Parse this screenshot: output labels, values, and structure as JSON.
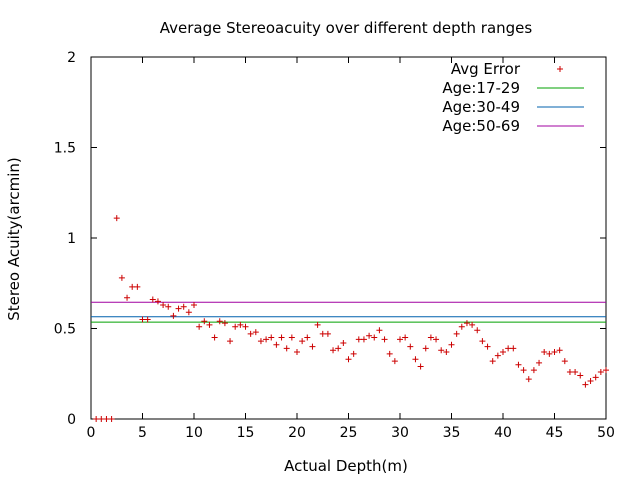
{
  "chart_data": {
    "type": "scatter",
    "title": "Average Stereoacuity over different depth ranges",
    "xlabel": "Actual Depth(m)",
    "ylabel": "Stereo Acuity(arcmin)",
    "xlim": [
      0,
      50
    ],
    "ylim": [
      0,
      2
    ],
    "xticks": [
      "0",
      "5",
      "10",
      "15",
      "20",
      "25",
      "30",
      "35",
      "40",
      "45",
      "50"
    ],
    "yticks": [
      "0",
      "0.5",
      "1",
      "1.5",
      "2"
    ],
    "grid": false,
    "legend_position": "top-right",
    "scatter": {
      "name": "Avg Error",
      "color": "#cc0000",
      "marker": "plus",
      "x": [
        0.5,
        1.0,
        1.5,
        2.0,
        2.5,
        3.0,
        3.5,
        4.0,
        4.5,
        5.0,
        5.5,
        6.0,
        6.5,
        7.0,
        7.5,
        8.0,
        8.5,
        9.0,
        9.5,
        10.0,
        10.5,
        11.0,
        11.5,
        12.0,
        12.5,
        13.0,
        13.5,
        14.0,
        14.5,
        15.0,
        15.5,
        16.0,
        16.5,
        17.0,
        17.5,
        18.0,
        18.5,
        19.0,
        19.5,
        20.0,
        20.5,
        21.0,
        21.5,
        22.0,
        22.5,
        23.0,
        23.5,
        24.0,
        24.5,
        25.0,
        25.5,
        26.0,
        26.5,
        27.0,
        27.5,
        28.0,
        28.5,
        29.0,
        29.5,
        30.0,
        30.5,
        31.0,
        31.5,
        32.0,
        32.5,
        33.0,
        33.5,
        34.0,
        34.5,
        35.0,
        35.5,
        36.0,
        36.5,
        37.0,
        37.5,
        38.0,
        38.5,
        39.0,
        39.5,
        40.0,
        40.5,
        41.0,
        41.5,
        42.0,
        42.5,
        43.0,
        43.5,
        44.0,
        44.5,
        45.0,
        45.5,
        46.0,
        46.5,
        47.0,
        47.5,
        48.0,
        48.5,
        49.0,
        49.5,
        50.0
      ],
      "y": [
        0.0,
        0.0,
        0.0,
        0.0,
        1.11,
        0.78,
        0.67,
        0.73,
        0.73,
        0.55,
        0.55,
        0.66,
        0.65,
        0.63,
        0.62,
        0.57,
        0.61,
        0.62,
        0.59,
        0.63,
        0.51,
        0.54,
        0.52,
        0.45,
        0.54,
        0.53,
        0.43,
        0.51,
        0.52,
        0.51,
        0.47,
        0.48,
        0.43,
        0.44,
        0.45,
        0.41,
        0.45,
        0.39,
        0.45,
        0.37,
        0.43,
        0.45,
        0.4,
        0.52,
        0.47,
        0.47,
        0.38,
        0.39,
        0.42,
        0.33,
        0.36,
        0.44,
        0.44,
        0.46,
        0.45,
        0.49,
        0.44,
        0.36,
        0.32,
        0.44,
        0.45,
        0.4,
        0.33,
        0.29,
        0.39,
        0.45,
        0.44,
        0.38,
        0.37,
        0.41,
        0.47,
        0.51,
        0.53,
        0.52,
        0.49,
        0.43,
        0.4,
        0.32,
        0.35,
        0.37,
        0.39,
        0.39,
        0.3,
        0.27,
        0.22,
        0.27,
        0.31,
        0.37,
        0.36,
        0.37,
        0.38,
        0.32,
        0.26,
        0.26,
        0.24,
        0.19,
        0.21,
        0.23,
        0.26,
        0.27
      ]
    },
    "lines": [
      {
        "name": "Age:17-29",
        "y": 0.535,
        "color": "#00a000"
      },
      {
        "name": "Age:30-49",
        "y": 0.565,
        "color": "#0060ad"
      },
      {
        "name": "Age:50-69",
        "y": 0.645,
        "color": "#a000a0"
      }
    ]
  }
}
